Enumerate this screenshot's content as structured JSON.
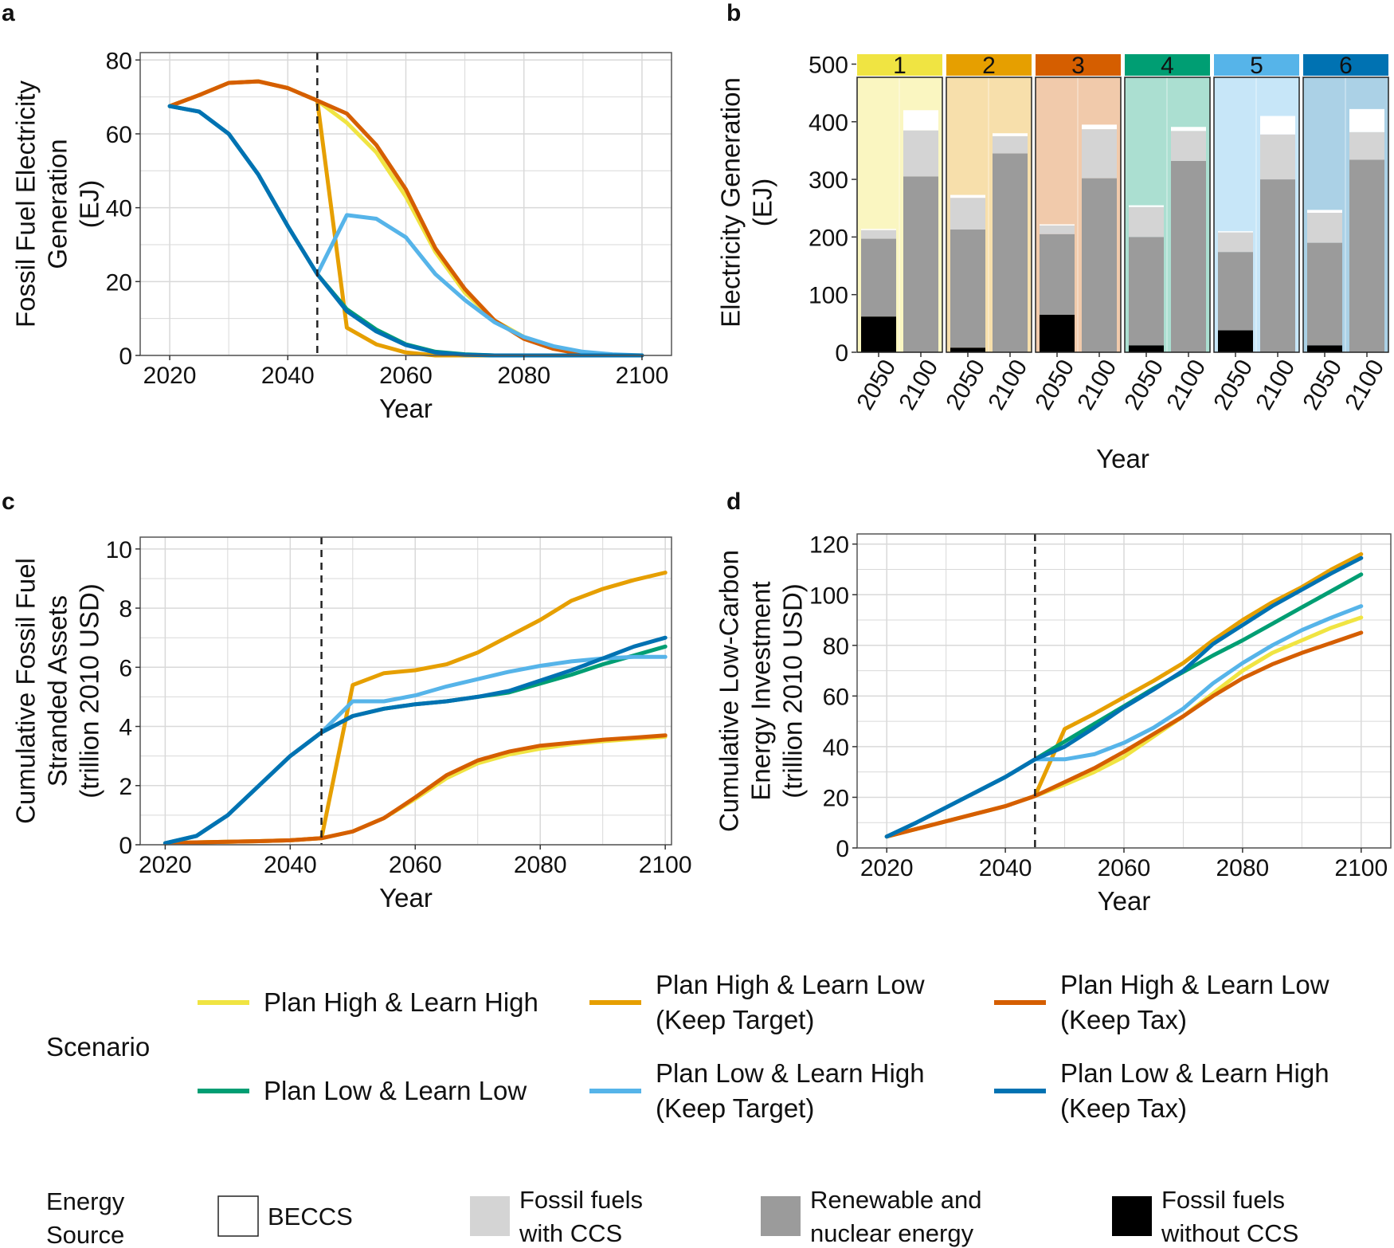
{
  "figure": {
    "palette": {
      "yellow": "#F0E442",
      "orange": "#E69F00",
      "vermillion": "#D55E00",
      "green": "#009E73",
      "skyblue": "#56B4E9",
      "blue": "#0072B2",
      "grid": "#d9d9d9",
      "beccs": "#ffffff",
      "fossil_ccs": "#d4d4d4",
      "renewable": "#9b9b9b",
      "fossil_no_ccs": "#000000"
    }
  },
  "chart_data": [
    {
      "panel": "a",
      "type": "line",
      "xlabel": "Year",
      "ylabel": [
        "Fossil Fuel Electricity",
        "Generation",
        "(EJ)"
      ],
      "xlim": [
        2015,
        2105
      ],
      "ylim": [
        0,
        82
      ],
      "xticks": [
        "2020",
        "2040",
        "2060",
        "2080",
        "2100"
      ],
      "yticks": [
        "0",
        "20",
        "40",
        "60",
        "80"
      ],
      "vline": 2045,
      "x": [
        2020,
        2025,
        2030,
        2035,
        2040,
        2045,
        2050,
        2055,
        2060,
        2065,
        2070,
        2075,
        2080,
        2085,
        2090,
        2095,
        2100
      ],
      "series": [
        {
          "name": "Plan High & Learn High",
          "color": "#F0E442",
          "values": [
            67.5,
            70.5,
            73.8,
            74.2,
            72.4,
            69,
            63,
            55,
            43,
            28,
            17,
            9.5,
            5,
            2,
            0.5,
            0.1,
            0
          ]
        },
        {
          "name": "Plan High & Learn Low (Keep Target)",
          "color": "#E69F00",
          "values": [
            67.5,
            70.5,
            73.8,
            74.2,
            72.4,
            69,
            7.5,
            3,
            0.8,
            0,
            0,
            0,
            0,
            0,
            0,
            0,
            0
          ]
        },
        {
          "name": "Plan High & Learn Low (Keep Tax)",
          "color": "#D55E00",
          "values": [
            67.5,
            70.5,
            73.8,
            74.2,
            72.4,
            69,
            65.5,
            57,
            45,
            29,
            18,
            9.5,
            4.5,
            1.8,
            0.3,
            0,
            0
          ]
        },
        {
          "name": "Plan Low & Learn Low",
          "color": "#009E73",
          "values": [
            67.5,
            66,
            60,
            49,
            35,
            22,
            12.5,
            7,
            3,
            1,
            0.3,
            0,
            0,
            0,
            0,
            0,
            0
          ]
        },
        {
          "name": "Plan Low & Learn High (Keep Target)",
          "color": "#56B4E9",
          "values": [
            67.5,
            66,
            60,
            49,
            35,
            22,
            38,
            37,
            32,
            22,
            15,
            9,
            5,
            2.5,
            1,
            0.3,
            0
          ]
        },
        {
          "name": "Plan Low & Learn High (Keep Tax)",
          "color": "#0072B2",
          "values": [
            67.5,
            66,
            60,
            49,
            35,
            22,
            12,
            6.5,
            2.8,
            0.8,
            0.2,
            0,
            0,
            0,
            0,
            0,
            0
          ]
        }
      ]
    },
    {
      "panel": "b",
      "type": "bar",
      "stacked": true,
      "xlabel": "Year",
      "ylabel": [
        "Electricity Generation",
        "(EJ)"
      ],
      "ylim": [
        0,
        520
      ],
      "yticks": [
        "0",
        "100",
        "200",
        "300",
        "400",
        "500"
      ],
      "facets": [
        "1",
        "2",
        "3",
        "4",
        "5",
        "6"
      ],
      "facet_colors": [
        "#F0E442",
        "#E69F00",
        "#D55E00",
        "#009E73",
        "#56B4E9",
        "#0072B2"
      ],
      "categories": [
        "2050",
        "2100"
      ],
      "stack_order": [
        "Fossil fuels without CCS",
        "Renewable and nuclear energy",
        "Fossil fuels with CCS",
        "BECCS"
      ],
      "stack_colors": [
        "#000000",
        "#9b9b9b",
        "#d4d4d4",
        "#ffffff"
      ],
      "values": [
        [
          [
            62,
            135,
            15,
            2
          ],
          [
            0,
            305,
            80,
            35
          ]
        ],
        [
          [
            8,
            205,
            55,
            5
          ],
          [
            0,
            345,
            30,
            5
          ]
        ],
        [
          [
            65,
            140,
            15,
            2
          ],
          [
            0,
            302,
            85,
            8
          ]
        ],
        [
          [
            12,
            188,
            52,
            3
          ],
          [
            0,
            332,
            52,
            7
          ]
        ],
        [
          [
            38,
            136,
            34,
            2
          ],
          [
            0,
            300,
            78,
            32
          ]
        ],
        [
          [
            12,
            178,
            52,
            5
          ],
          [
            0,
            334,
            48,
            40
          ]
        ]
      ]
    },
    {
      "panel": "c",
      "type": "line",
      "xlabel": "Year",
      "ylabel": [
        "Cumulative Fossil Fuel",
        "Stranded Assets",
        "(trillion 2010 USD)"
      ],
      "xlim": [
        2016,
        2101
      ],
      "ylim": [
        0,
        10.4
      ],
      "xticks": [
        "2020",
        "2040",
        "2060",
        "2080",
        "2100"
      ],
      "yticks": [
        "0",
        "2",
        "4",
        "6",
        "8",
        "10"
      ],
      "vline": 2045,
      "x": [
        2020,
        2025,
        2030,
        2035,
        2040,
        2045,
        2050,
        2055,
        2060,
        2065,
        2070,
        2075,
        2080,
        2085,
        2090,
        2095,
        2100
      ],
      "series": [
        {
          "name": "Plan High & Learn High",
          "color": "#F0E442",
          "values": [
            0.05,
            0.08,
            0.1,
            0.12,
            0.15,
            0.22,
            0.45,
            0.9,
            1.55,
            2.25,
            2.75,
            3.05,
            3.25,
            3.4,
            3.5,
            3.58,
            3.65
          ]
        },
        {
          "name": "Plan High & Learn Low (Keep Target)",
          "color": "#E69F00",
          "values": [
            0.05,
            0.08,
            0.1,
            0.12,
            0.15,
            0.22,
            5.4,
            5.8,
            5.9,
            6.1,
            6.5,
            7.05,
            7.6,
            8.25,
            8.65,
            8.95,
            9.2
          ]
        },
        {
          "name": "Plan High & Learn Low (Keep Tax)",
          "color": "#D55E00",
          "values": [
            0.05,
            0.08,
            0.1,
            0.12,
            0.15,
            0.22,
            0.45,
            0.9,
            1.6,
            2.35,
            2.85,
            3.15,
            3.35,
            3.45,
            3.55,
            3.62,
            3.7
          ]
        },
        {
          "name": "Plan Low & Learn Low",
          "color": "#009E73",
          "values": [
            0.05,
            0.3,
            1.0,
            2.0,
            3.0,
            3.8,
            4.35,
            4.6,
            4.75,
            4.85,
            5.0,
            5.15,
            5.45,
            5.75,
            6.1,
            6.4,
            6.7
          ]
        },
        {
          "name": "Plan Low & Learn High (Keep Target)",
          "color": "#56B4E9",
          "values": [
            0.05,
            0.3,
            1.0,
            2.0,
            3.0,
            3.8,
            4.85,
            4.85,
            5.05,
            5.35,
            5.6,
            5.85,
            6.05,
            6.2,
            6.3,
            6.35,
            6.35
          ]
        },
        {
          "name": "Plan Low & Learn High (Keep Tax)",
          "color": "#0072B2",
          "values": [
            0.05,
            0.3,
            1.0,
            2.0,
            3.0,
            3.8,
            4.35,
            4.6,
            4.75,
            4.85,
            5.0,
            5.2,
            5.55,
            5.9,
            6.3,
            6.7,
            7.0
          ]
        }
      ]
    },
    {
      "panel": "d",
      "type": "line",
      "xlabel": "Year",
      "ylabel": [
        "Cumulative Low-Carbon",
        "Energy Investment",
        "(trillion 2010 USD)"
      ],
      "xlim": [
        2015,
        2105
      ],
      "ylim": [
        0,
        124
      ],
      "xticks": [
        "2020",
        "2040",
        "2060",
        "2080",
        "2100"
      ],
      "yticks": [
        "0",
        "20",
        "40",
        "60",
        "80",
        "100",
        "120"
      ],
      "vline": 2045,
      "x": [
        2020,
        2025,
        2030,
        2035,
        2040,
        2045,
        2050,
        2055,
        2060,
        2065,
        2070,
        2075,
        2080,
        2085,
        2090,
        2095,
        2100
      ],
      "series": [
        {
          "name": "Plan High & Learn High",
          "color": "#F0E442",
          "values": [
            4.5,
            7.5,
            10.5,
            13.5,
            16.5,
            20.5,
            25,
            30,
            36,
            44,
            52,
            61,
            70,
            77,
            82,
            87,
            91
          ]
        },
        {
          "name": "Plan High & Learn Low (Keep Target)",
          "color": "#E69F00",
          "values": [
            4.5,
            7.5,
            10.5,
            13.5,
            16.5,
            20.5,
            47,
            53,
            59.5,
            66,
            73,
            82,
            90,
            97,
            103,
            110,
            116
          ]
        },
        {
          "name": "Plan High & Learn Low (Keep Tax)",
          "color": "#D55E00",
          "values": [
            4.5,
            7.5,
            10.5,
            13.5,
            16.5,
            20.5,
            26,
            31.5,
            38,
            45,
            52,
            60,
            67,
            72.5,
            77,
            81,
            85
          ]
        },
        {
          "name": "Plan Low & Learn Low",
          "color": "#009E73",
          "values": [
            4.5,
            10,
            16,
            22,
            28,
            35,
            42,
            49,
            56,
            63,
            69.5,
            76,
            82,
            88.5,
            95,
            101.5,
            108
          ]
        },
        {
          "name": "Plan Low & Learn High (Keep Target)",
          "color": "#56B4E9",
          "values": [
            4.5,
            10,
            16,
            22,
            28,
            35,
            35,
            37,
            41.5,
            47.5,
            55,
            65,
            73,
            80,
            86,
            91,
            95.5
          ]
        },
        {
          "name": "Plan Low & Learn High (Keep Tax)",
          "color": "#0072B2",
          "values": [
            4.5,
            10,
            16,
            22,
            28,
            35,
            40,
            47.5,
            55.5,
            62.5,
            70,
            80.5,
            88,
            95.5,
            102,
            108.5,
            114.5
          ]
        }
      ]
    }
  ],
  "legend": {
    "scenario_title": "Scenario",
    "scenarios": [
      {
        "lines": [
          "Plan High & Learn High"
        ],
        "color": "#F0E442"
      },
      {
        "lines": [
          "Plan High & Learn Low",
          "(Keep Target)"
        ],
        "color": "#E69F00"
      },
      {
        "lines": [
          "Plan High & Learn Low",
          "(Keep Tax)"
        ],
        "color": "#D55E00"
      },
      {
        "lines": [
          "Plan Low & Learn Low"
        ],
        "color": "#009E73"
      },
      {
        "lines": [
          "Plan Low & Learn High",
          "(Keep Target)"
        ],
        "color": "#56B4E9"
      },
      {
        "lines": [
          "Plan Low & Learn High",
          "(Keep Tax)"
        ],
        "color": "#0072B2"
      }
    ],
    "energy_title": [
      "Energy",
      "Source"
    ],
    "energy": [
      {
        "lines": [
          "BECCS"
        ],
        "color": "#ffffff",
        "outlined": true
      },
      {
        "lines": [
          "Fossil fuels",
          "with CCS"
        ],
        "color": "#d4d4d4"
      },
      {
        "lines": [
          "Renewable and",
          "nuclear energy"
        ],
        "color": "#9b9b9b"
      },
      {
        "lines": [
          "Fossil fuels",
          "without CCS"
        ],
        "color": "#000000"
      }
    ]
  }
}
